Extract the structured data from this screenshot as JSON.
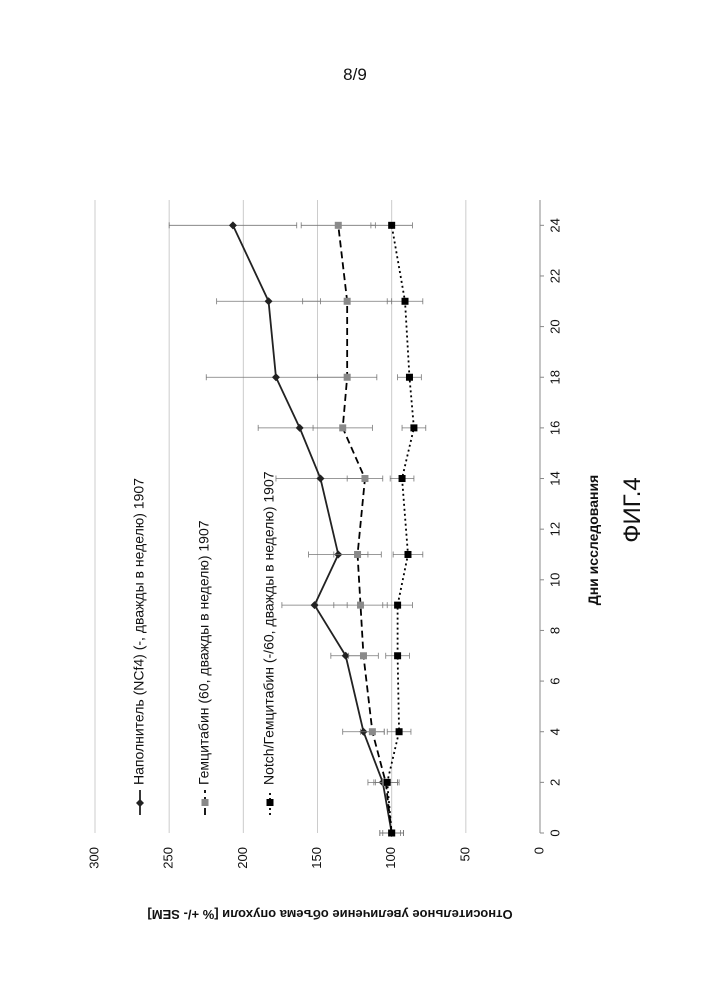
{
  "page_number": "8/9",
  "figure_label": "ФИГ.4",
  "chart_data": {
    "type": "line",
    "x_label": "Дни исследования",
    "y_label": "Относительное увеличение объема опухоли [% +/- SEM]",
    "x": [
      0,
      2,
      4,
      7,
      9,
      11,
      14,
      16,
      18,
      21,
      24
    ],
    "xlim": [
      0,
      25
    ],
    "xticks": [
      0,
      2,
      4,
      6,
      8,
      10,
      12,
      14,
      16,
      18,
      20,
      22,
      24
    ],
    "ylim": [
      0,
      300
    ],
    "yticks": [
      0,
      50,
      100,
      150,
      200,
      250,
      300
    ],
    "grid": true,
    "series": [
      {
        "name": "Наполнитель (NCf4) (-, дважды в неделю) 1907",
        "color": "#222222",
        "dash": "solid",
        "marker": "diamond",
        "values": [
          100,
          106,
          119,
          131,
          152,
          136,
          148,
          162,
          178,
          183,
          207
        ],
        "errors": [
          8,
          10,
          14,
          10,
          22,
          20,
          30,
          28,
          47,
          35,
          43
        ]
      },
      {
        "name": "Гемцитабин (60, дважды в неделю) 1907",
        "color": "#8a8a8a",
        "dash": "dashed",
        "marker": "square",
        "values": [
          100,
          104,
          113,
          119,
          121,
          123,
          118,
          133,
          130,
          130,
          136
        ],
        "errors": [
          6,
          8,
          8,
          10,
          18,
          16,
          12,
          20,
          20,
          30,
          25
        ]
      },
      {
        "name": "Notch/Гемцитабин (-/60, дважды в неделю) 1907",
        "color": "#000000",
        "dash": "dotted",
        "marker": "square",
        "values": [
          100,
          103,
          95,
          96,
          96,
          89,
          93,
          85,
          88,
          91,
          100
        ],
        "errors": [
          8,
          8,
          8,
          8,
          10,
          10,
          8,
          8,
          8,
          12,
          14
        ]
      }
    ]
  }
}
